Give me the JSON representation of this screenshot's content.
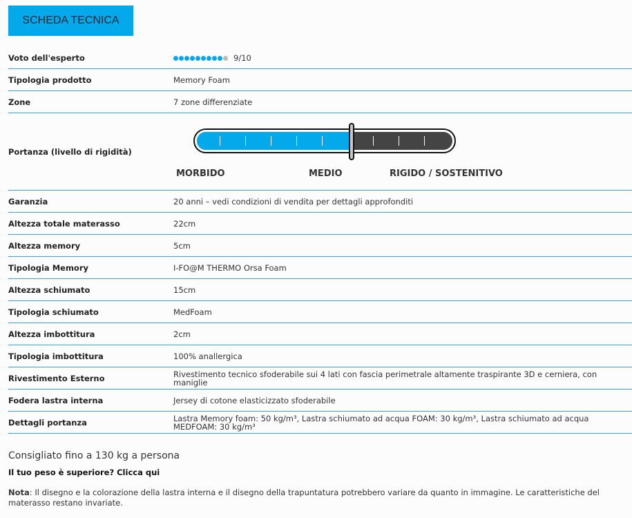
{
  "header": {
    "title": "SCHEDA TECNICA"
  },
  "rating": {
    "label": "Voto dell'esperto",
    "value": 9,
    "max": 10,
    "text": "9/10"
  },
  "rows_top": [
    {
      "label": "Tipologia prodotto",
      "value": "Memory Foam"
    },
    {
      "label": "Zone",
      "value": "7 zone differenziate"
    }
  ],
  "firmness": {
    "label": "Portanza (livello di rigidità)",
    "level_fraction": 0.6,
    "labels": [
      "MORBIDO",
      "MEDIO",
      "RIGIDO / SOSTENITIVO"
    ],
    "fill_color": "#03a9eb",
    "track_color": "#444444"
  },
  "rows": [
    {
      "label": "Garanzia",
      "value": "20 anni – vedi condizioni di vendita per dettagli approfonditi"
    },
    {
      "label": "Altezza totale materasso",
      "value": "22cm"
    },
    {
      "label": "Altezza memory",
      "value": "5cm"
    },
    {
      "label": "Tipologia Memory",
      "value": "I-FO@M THERMO Orsa Foam"
    },
    {
      "label": "Altezza schiumato",
      "value": "15cm"
    },
    {
      "label": "Tipologia schiumato",
      "value": "MedFoam"
    },
    {
      "label": "Altezza imbottitura",
      "value": "2cm"
    },
    {
      "label": "Tipologia imbottitura",
      "value": "100% anallergica"
    },
    {
      "label": "Rivestimento Esterno",
      "value": "Rivestimento tecnico sfoderabile sui 4 lati con fascia perimetrale altamente traspirante 3D e cerniera, con maniglie"
    },
    {
      "label": "Fodera lastra interna",
      "value": "Jersey di cotone elasticizzato sfoderabile"
    },
    {
      "label": "Dettagli portanza",
      "value": "Lastra Memory foam: 50 kg/m³, Lastra schiumato ad acqua FOAM: 30 kg/m³, Lastra schiumato ad acqua MEDFOAM: 30 kg/m³"
    }
  ],
  "recommendation": "Consigliato fino a 130 kg a persona",
  "heavier_link": "Il tuo peso è superiore? Clicca qui",
  "note": {
    "label": "Nota",
    "text": ": Il disegno e la colorazione della lastra interna e il disegno della trapuntatura potrebbero variare da quanto in immagine. Le caratteristiche del materasso restano invariate."
  }
}
